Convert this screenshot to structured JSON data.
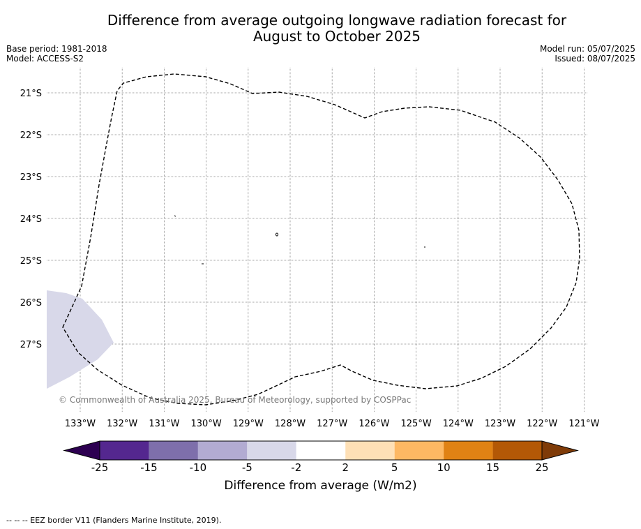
{
  "title": {
    "line1": "Difference from average outgoing longwave radiation forecast for",
    "line2": "August to October 2025"
  },
  "meta": {
    "base_period": "Base period: 1981-2018",
    "model": "Model: ACCESS-S2",
    "model_run": "Model run: 05/07/2025",
    "issued": "Issued: 08/07/2025"
  },
  "map": {
    "lat_labels": [
      "21°S",
      "22°S",
      "23°S",
      "24°S",
      "25°S",
      "26°S",
      "27°S"
    ],
    "lon_labels": [
      "133°W",
      "132°W",
      "131°W",
      "130°W",
      "129°W",
      "128°W",
      "127°W",
      "126°W",
      "125°W",
      "124°W",
      "123°W",
      "122°W",
      "121°W"
    ],
    "copyright": "© Commonwealth of Australia 2025, Bureau of Meteorology, supported by COSPPac",
    "anomaly_color": "#d8d8e9",
    "anomaly_region_category": "-5 to -2"
  },
  "colorbar": {
    "ticks": [
      "-25",
      "-15",
      "-10",
      "-5",
      "-2",
      "2",
      "5",
      "10",
      "15",
      "25"
    ],
    "colors": [
      "#2d0051",
      "#54278f",
      "#7e6fab",
      "#b2abd2",
      "#d8d8e9",
      "#ffffff",
      "#fee0b6",
      "#fdb863",
      "#e08214",
      "#b35806",
      "#7f3b08"
    ],
    "label": "Difference from average (W/m2)"
  },
  "footnote": "--  --  -- EEZ border V11 (Flanders Marine Institute, 2019)."
}
